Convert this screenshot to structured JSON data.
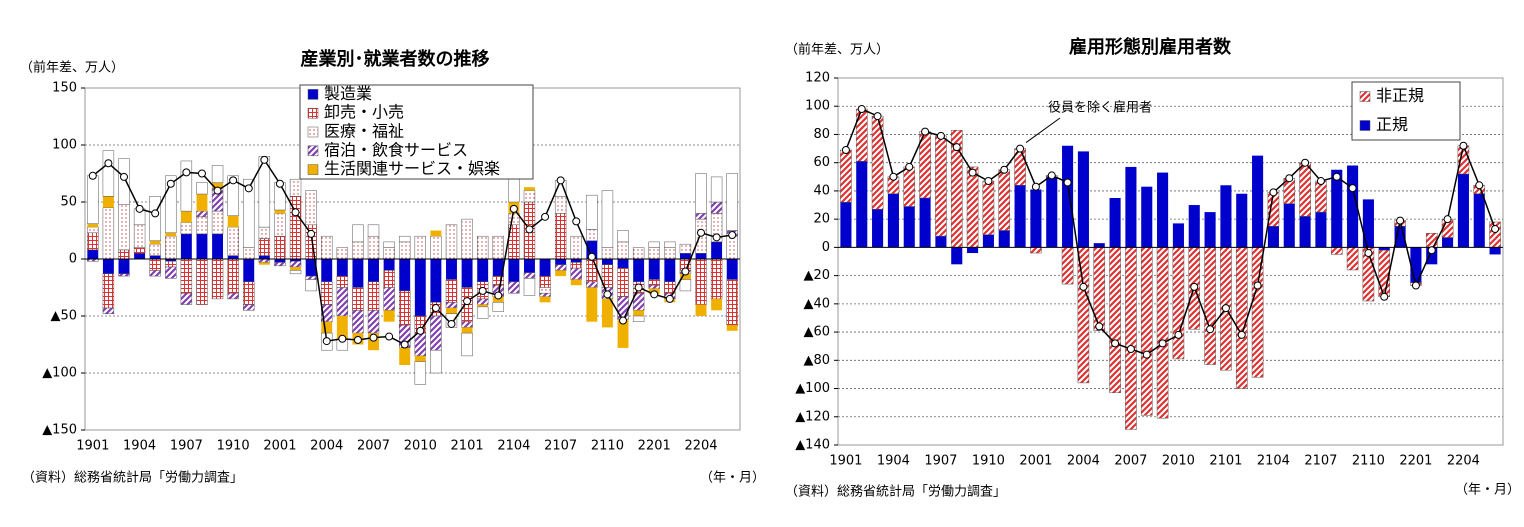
{
  "chart_data": [
    {
      "type": "bar",
      "stacked": true,
      "title": "産業別･就業者数の推移",
      "y_label": "（前年差、万人）",
      "source": "（資料）総務省統計局「労働力調査」",
      "x_label": "（年・月）",
      "categories": [
        "1901",
        null,
        null,
        "1904",
        null,
        null,
        "1907",
        null,
        null,
        "1910",
        null,
        null,
        "2001",
        null,
        null,
        "2004",
        null,
        null,
        "2007",
        null,
        null,
        "2010",
        null,
        null,
        "2101",
        null,
        null,
        "2104",
        null,
        null,
        "2107",
        null,
        null,
        "2110",
        null,
        null,
        "2201",
        null,
        null,
        "2204",
        null,
        null
      ],
      "ylim": [
        -150,
        150
      ],
      "yticks": [
        {
          "value": -150,
          "label": "▲150"
        },
        {
          "value": -100,
          "label": "▲100"
        },
        {
          "value": -50,
          "label": "▲50"
        },
        0,
        50,
        100,
        150
      ],
      "grid": true,
      "legend": "top",
      "series": [
        {
          "name": "製造業",
          "color": "#0000cc",
          "values": [
            8,
            -13,
            -13,
            5,
            3,
            -2,
            22,
            22,
            22,
            3,
            -20,
            3,
            -3,
            -2,
            -15,
            -20,
            -15,
            -25,
            -20,
            -10,
            -28,
            -50,
            -38,
            -18,
            -25,
            -20,
            -15,
            -20,
            -12,
            -15,
            -5,
            -3,
            16,
            -5,
            -8,
            -20,
            -18,
            -20,
            5,
            5,
            15,
            -18
          ]
        },
        {
          "name": "卸売・小売",
          "color": "#e03030",
          "values": [
            15,
            -30,
            8,
            5,
            -10,
            -5,
            -30,
            -40,
            -35,
            -30,
            -20,
            15,
            20,
            55,
            30,
            -20,
            -10,
            -20,
            -25,
            -15,
            -30,
            -15,
            -12,
            -20,
            -30,
            -15,
            -8,
            30,
            50,
            -10,
            40,
            -5,
            -20,
            -20,
            -25,
            -10,
            -5,
            -10,
            -10,
            -40,
            -35,
            -40
          ]
        },
        {
          "name": "医療・福祉",
          "color": "#c04040",
          "values": [
            5,
            45,
            40,
            20,
            10,
            20,
            10,
            15,
            20,
            25,
            10,
            10,
            20,
            15,
            30,
            20,
            10,
            15,
            20,
            10,
            15,
            20,
            20,
            30,
            35,
            20,
            20,
            10,
            10,
            -5,
            15,
            20,
            10,
            10,
            15,
            10,
            10,
            10,
            8,
            30,
            25,
            20
          ]
        },
        {
          "name": "宿泊・飲食サービス",
          "color": "#8040b0",
          "values": [
            -2,
            -5,
            -2,
            0,
            -5,
            -10,
            -10,
            5,
            20,
            -5,
            -5,
            -3,
            -3,
            -5,
            -3,
            -15,
            -25,
            -20,
            -20,
            -20,
            -20,
            -20,
            -30,
            -5,
            -5,
            -5,
            -10,
            -10,
            -5,
            -3,
            -5,
            -10,
            -5,
            -10,
            -20,
            -15,
            -3,
            -5,
            -3,
            5,
            10,
            5
          ]
        },
        {
          "name": "生活関連サービス・娯楽",
          "color": "#f0b000",
          "values": [
            3,
            10,
            0,
            0,
            3,
            3,
            10,
            15,
            5,
            10,
            0,
            -2,
            3,
            -3,
            0,
            -10,
            -20,
            -10,
            -15,
            -10,
            -15,
            -5,
            5,
            -5,
            -5,
            -2,
            -5,
            10,
            3,
            -5,
            -5,
            -5,
            -30,
            -25,
            -25,
            -5,
            -5,
            -3,
            -5,
            -10,
            -10,
            -5
          ]
        },
        {
          "color": "#ffffff",
          "values": [
            42,
            40,
            40,
            14,
            39,
            50,
            44,
            10,
            15,
            35,
            60,
            62,
            24,
            -3,
            -10,
            -15,
            -10,
            15,
            10,
            5,
            5,
            -20,
            -20,
            -12,
            -20,
            -10,
            -8,
            20,
            -15,
            0,
            14,
            0,
            30,
            50,
            10,
            -5,
            5,
            5,
            -10,
            35,
            22,
            50
          ]
        },
        {
          "type": "line",
          "color": "#000000",
          "values": [
            73,
            84,
            72,
            44,
            40,
            66,
            76,
            75,
            60,
            69,
            62,
            87,
            66,
            41,
            22,
            -72,
            -70,
            -71,
            -69,
            -68,
            -75,
            -63,
            -43,
            -57,
            -37,
            -28,
            -32,
            44,
            26,
            37,
            69,
            33,
            2,
            -31,
            -54,
            -25,
            -31,
            -35,
            -11,
            23,
            19,
            21
          ]
        }
      ]
    },
    {
      "type": "bar",
      "stacked": true,
      "title": "雇用形態別雇用者数",
      "y_label": "（前年差、万人）",
      "source": "（資料）総務省統計局「労働力調査」",
      "x_label": "（年・月）",
      "categories": [
        "1901",
        null,
        null,
        "1904",
        null,
        null,
        "1907",
        null,
        null,
        "1910",
        null,
        null,
        "2001",
        null,
        null,
        "2004",
        null,
        null,
        "2007",
        null,
        null,
        "2010",
        null,
        null,
        "2101",
        null,
        null,
        "2104",
        null,
        null,
        "2107",
        null,
        null,
        "2110",
        null,
        null,
        "2201",
        null,
        null,
        "2204",
        null,
        null
      ],
      "ylim": [
        -140,
        120
      ],
      "yticks": [
        {
          "value": -140,
          "label": "▲140"
        },
        {
          "value": -120,
          "label": "▲120"
        },
        {
          "value": -100,
          "label": "▲100"
        },
        {
          "value": -80,
          "label": "▲80"
        },
        {
          "value": -60,
          "label": "▲60"
        },
        {
          "value": -40,
          "label": "▲40"
        },
        {
          "value": -20,
          "label": "▲20"
        },
        0,
        20,
        40,
        60,
        80,
        100,
        120
      ],
      "grid": true,
      "legend": "top-right",
      "legend_reversed": true,
      "series": [
        {
          "name": "正規",
          "color": "#0000cc",
          "values": [
            32,
            61,
            27,
            38,
            29,
            35,
            8,
            -12,
            -4,
            9,
            12,
            44,
            41,
            50,
            72,
            68,
            3,
            35,
            57,
            43,
            53,
            17,
            30,
            25,
            44,
            38,
            65,
            15,
            31,
            22,
            25,
            55,
            58,
            34,
            -2,
            15,
            -25,
            -12,
            7,
            52,
            38,
            -5
          ]
        },
        {
          "name": "非正規",
          "color": "#e03030",
          "values": [
            37,
            37,
            66,
            12,
            28,
            47,
            71,
            83,
            57,
            38,
            43,
            26,
            -4,
            1,
            -26,
            -96,
            -59,
            -103,
            -129,
            -119,
            -121,
            -79,
            -58,
            -83,
            -87,
            -100,
            -92,
            24,
            18,
            38,
            22,
            -5,
            -16,
            -38,
            -33,
            4,
            -2,
            10,
            13,
            20,
            6,
            18
          ]
        },
        {
          "type": "line",
          "name": "役員を除く雇用者",
          "color": "#000000",
          "values": [
            69,
            98,
            93,
            50,
            57,
            82,
            79,
            71,
            53,
            47,
            55,
            70,
            43,
            51,
            46,
            -28,
            -56,
            -68,
            -72,
            -76,
            -68,
            -62,
            -28,
            -58,
            -43,
            -62,
            -27,
            39,
            49,
            60,
            47,
            50,
            42,
            -4,
            -35,
            19,
            -27,
            -2,
            20,
            72,
            44,
            13
          ]
        }
      ]
    }
  ]
}
